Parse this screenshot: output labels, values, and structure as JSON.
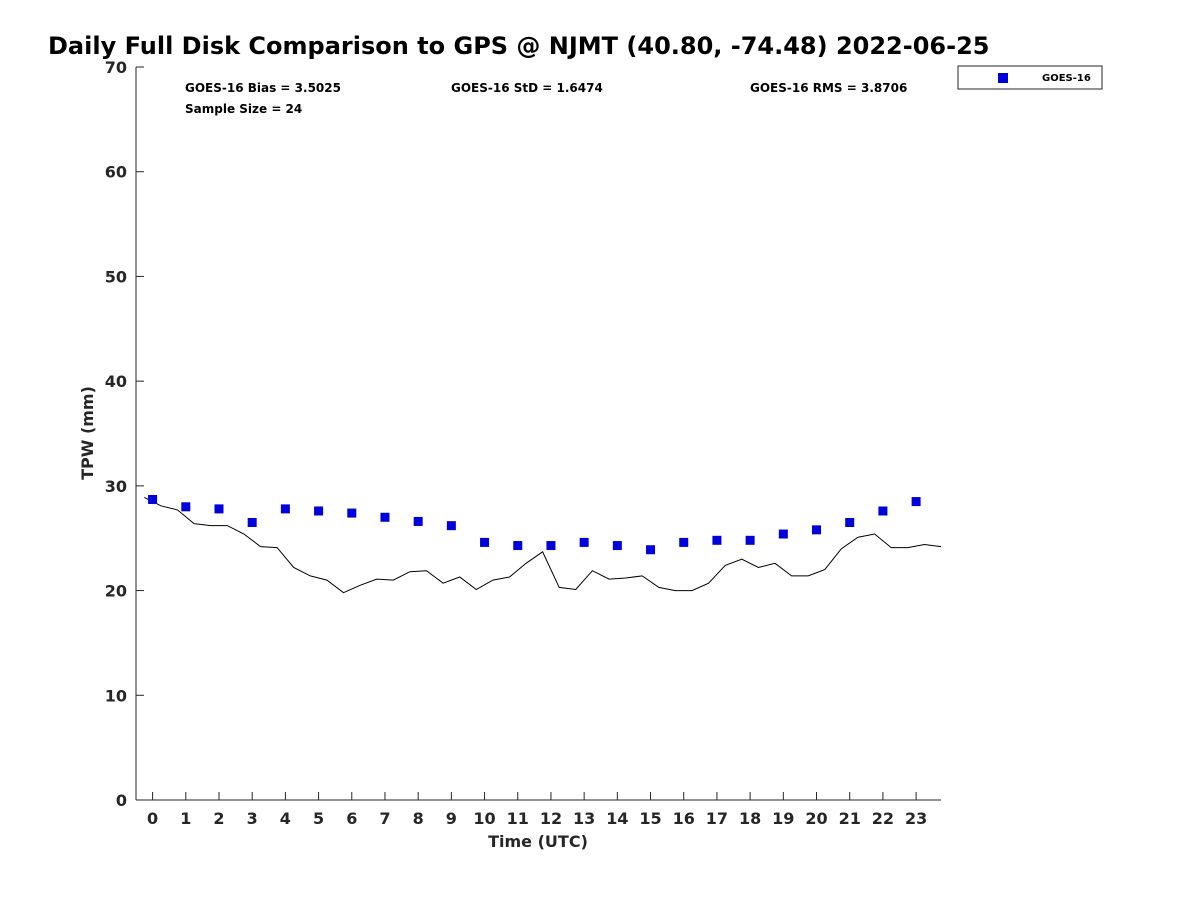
{
  "chart_data": {
    "type": "scatter",
    "title": "Daily Full Disk Comparison to GPS @ NJMT (40.80, -74.48) 2022-06-25",
    "xlabel": "Time (UTC)",
    "ylabel": "TPW (mm)",
    "xlim": [
      -0.5,
      23.75
    ],
    "ylim": [
      0,
      70
    ],
    "x_ticks": [
      "0",
      "1",
      "2",
      "3",
      "4",
      "5",
      "6",
      "7",
      "8",
      "9",
      "10",
      "11",
      "12",
      "13",
      "14",
      "15",
      "16",
      "17",
      "18",
      "19",
      "20",
      "21",
      "22",
      "23"
    ],
    "y_ticks": [
      "0",
      "10",
      "20",
      "30",
      "40",
      "50",
      "60",
      "70"
    ],
    "grid": false,
    "legend_position": "top-right",
    "stats": {
      "bias": "GOES-16 Bias = 3.5025",
      "std": "GOES-16 StD = 1.6474",
      "rms": "GOES-16 RMS = 3.8706",
      "sample_size": "Sample Size = 24"
    },
    "series": [
      {
        "name": "GOES-16",
        "marker": "square",
        "color": "#0000dd",
        "x": [
          0,
          1,
          2,
          3,
          4,
          5,
          6,
          7,
          8,
          9,
          10,
          11,
          12,
          13,
          14,
          15,
          16,
          17,
          18,
          19,
          20,
          21,
          22,
          23
        ],
        "y": [
          28.7,
          28.0,
          27.8,
          26.5,
          27.8,
          27.6,
          27.4,
          27.0,
          26.6,
          26.2,
          24.6,
          24.3,
          24.3,
          24.6,
          24.3,
          23.9,
          24.6,
          24.8,
          24.8,
          25.4,
          25.8,
          26.5,
          27.6,
          28.5
        ]
      },
      {
        "type": "line",
        "color": "#000000",
        "x": [
          -0.25,
          0.25,
          0.75,
          1.25,
          1.75,
          2.25,
          2.75,
          3.25,
          3.75,
          4.25,
          4.75,
          5.25,
          5.75,
          6.25,
          6.75,
          7.25,
          7.75,
          8.25,
          8.75,
          9.25,
          9.75,
          10.25,
          10.75,
          11.25,
          11.75,
          12.25,
          12.75,
          13.25,
          13.75,
          14.25,
          14.75,
          15.25,
          15.75,
          16.25,
          16.75,
          17.25,
          17.75,
          18.25,
          18.75,
          19.25,
          19.75,
          20.25,
          20.75,
          21.25,
          21.75,
          22.25,
          22.75,
          23.25,
          23.75
        ],
        "y": [
          28.9,
          28.1,
          27.7,
          26.4,
          26.2,
          26.2,
          25.4,
          24.2,
          24.1,
          22.2,
          21.4,
          21.0,
          19.8,
          20.5,
          21.1,
          21.0,
          21.8,
          21.9,
          20.7,
          21.3,
          20.1,
          21.0,
          21.3,
          22.6,
          23.7,
          20.3,
          20.1,
          21.9,
          21.1,
          21.2,
          21.4,
          20.3,
          20.0,
          20.0,
          20.7,
          22.4,
          23.0,
          22.2,
          22.6,
          21.4,
          21.4,
          22.0,
          24.0,
          25.1,
          25.4,
          24.1,
          24.1,
          24.4,
          24.2
        ]
      }
    ]
  }
}
